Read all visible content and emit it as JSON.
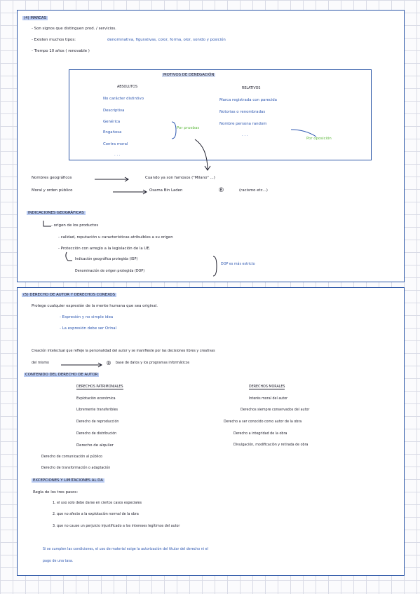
{
  "top": {
    "heading": "(4) MARCAS",
    "bullets": [
      "- Son signos que distinguen prod. / servicios.",
      "- Existen muchos tipos:",
      "- Tiempo 10 años ( renovable )"
    ],
    "types": "denominativa, figurativas, color, forma, olor, sonido y posición",
    "motivos_title": "MOTIVOS DE DENEGACIÓN",
    "absolutos_title": "ABSOLUTOS",
    "absolutos": [
      "No carácter distintivo",
      "Descriptiva",
      "Genérica",
      "Engañosa",
      "Contra moral",
      ". . ."
    ],
    "por_pruebas": "Por pruebas",
    "relativos_title": "RELATIVOS",
    "relativos": [
      "Marca registrada con parecida",
      "Notorias o renombradas",
      "Nombre persona random",
      ". . ."
    ],
    "por_oposicion": "Por oposición",
    "geo_left": "Nombres geográficos",
    "geo_right": "Cuando ya son famosos (\"Milano\" ...)",
    "moral_left": "Moral y orden público",
    "moral_right": "Osama Bin Laden",
    "moral_tail": "(racismo etc...)",
    "ig_title": "INDICACIONES GEOGRÁFICAS",
    "ig_lines": [
      "- origen de los productos",
      "- calidad, reputación u características atribuibles a su origen",
      "- Protección con arreglo a la legislación de la UE."
    ],
    "igp": "Indicación geográfica protegida (IGP)",
    "dop": "Denominación de origen protegida (DOP)",
    "dop_note": "DOP es más estricto"
  },
  "bottom": {
    "heading": "(5) DERECHO DE AUTOR Y DERECHOS CONEXOS",
    "intro": "Protege cualquier expresión de la mente humana que sea original.",
    "intro_bullets": [
      "- Expresión y no simple idea",
      "- La expresión debe ser Orinal"
    ],
    "creation_line1": "Creación intelectual que refleje la personalidad del autor y se manifieste por las decisiones libres y creativas",
    "creation_line2_left": "del mismo",
    "creation_line2_right": "base de datos y los programas informáticos",
    "contenido_title": "CONTENIDO DEL DERECHO DE AUTOR",
    "patrimoniales_title": "DERECHOS PATRIMONIALES",
    "patrimoniales": [
      "Explotación económica",
      "Libremente transferibles",
      "Derecho de reproducción",
      "Derecho de distribución",
      "Derecho de alquiler"
    ],
    "patrimoniales_extra": [
      "Derecho de comunicación al público",
      "Derecho de transformación o adaptación"
    ],
    "morales_title": "DERECHOS MORALES",
    "morales": [
      "Interés moral del autor",
      "Derechos siempre conservados del autor",
      "Derecho a ser conocido como autor de la obra",
      "Derecho a integridad de la obra",
      "Divulgación, modificación y retirada de obra"
    ],
    "excepciones_title": "EXCEPCIONES Y LIMITACIONES AL DA",
    "regla": "Regla de los tres pasos:",
    "pasos": [
      "1. el uso solo debe darse en ciertos casos especiales",
      "2. que no afecte a la explotación normal de la obra",
      "3. que no cause un perjuicio injustificado a los intereses legítimos del autor"
    ],
    "conclusion_line1": "Si se cumplen las condiciones, el uso de material exige la autorización del titular del derecho ni el",
    "conclusion_line2": "pago de una tasa.",
    "circled_r": "®"
  },
  "colors": {
    "ink": "#1c1c2a",
    "blue": "#2c56b0",
    "green": "#5fb93f",
    "highlight": "#b9cbf2",
    "frame": "#2a55a6"
  }
}
